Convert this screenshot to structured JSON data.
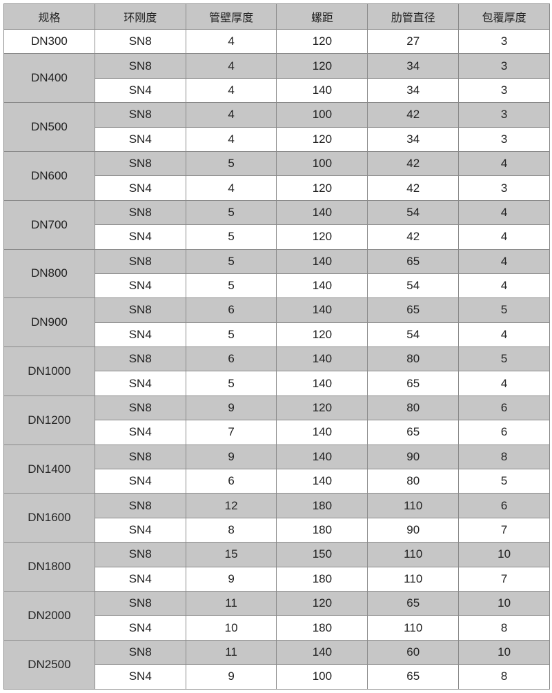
{
  "headers": [
    "规格",
    "环刚度",
    "管壁厚度",
    "螺距",
    "肋管直径",
    "包覆厚度"
  ],
  "colors": {
    "shade": "#c6c6c6",
    "border": "#8a8a8a"
  },
  "groups": [
    {
      "spec": "DN300",
      "rows": [
        [
          "SN8",
          "4",
          "120",
          "27",
          "3"
        ]
      ]
    },
    {
      "spec": "DN400",
      "rows": [
        [
          "SN8",
          "4",
          "120",
          "34",
          "3"
        ],
        [
          "SN4",
          "4",
          "140",
          "34",
          "3"
        ]
      ]
    },
    {
      "spec": "DN500",
      "rows": [
        [
          "SN8",
          "4",
          "100",
          "42",
          "3"
        ],
        [
          "SN4",
          "4",
          "120",
          "34",
          "3"
        ]
      ]
    },
    {
      "spec": "DN600",
      "rows": [
        [
          "SN8",
          "5",
          "100",
          "42",
          "4"
        ],
        [
          "SN4",
          "4",
          "120",
          "42",
          "3"
        ]
      ]
    },
    {
      "spec": "DN700",
      "rows": [
        [
          "SN8",
          "5",
          "140",
          "54",
          "4"
        ],
        [
          "SN4",
          "5",
          "120",
          "42",
          "4"
        ]
      ]
    },
    {
      "spec": "DN800",
      "rows": [
        [
          "SN8",
          "5",
          "140",
          "65",
          "4"
        ],
        [
          "SN4",
          "5",
          "140",
          "54",
          "4"
        ]
      ]
    },
    {
      "spec": "DN900",
      "rows": [
        [
          "SN8",
          "6",
          "140",
          "65",
          "5"
        ],
        [
          "SN4",
          "5",
          "120",
          "54",
          "4"
        ]
      ]
    },
    {
      "spec": "DN1000",
      "rows": [
        [
          "SN8",
          "6",
          "140",
          "80",
          "5"
        ],
        [
          "SN4",
          "5",
          "140",
          "65",
          "4"
        ]
      ]
    },
    {
      "spec": "DN1200",
      "rows": [
        [
          "SN8",
          "9",
          "120",
          "80",
          "6"
        ],
        [
          "SN4",
          "7",
          "140",
          "65",
          "6"
        ]
      ]
    },
    {
      "spec": "DN1400",
      "rows": [
        [
          "SN8",
          "9",
          "140",
          "90",
          "8"
        ],
        [
          "SN4",
          "6",
          "140",
          "80",
          "5"
        ]
      ]
    },
    {
      "spec": "DN1600",
      "rows": [
        [
          "SN8",
          "12",
          "180",
          "110",
          "6"
        ],
        [
          "SN4",
          "8",
          "180",
          "90",
          "7"
        ]
      ]
    },
    {
      "spec": "DN1800",
      "rows": [
        [
          "SN8",
          "15",
          "150",
          "110",
          "10"
        ],
        [
          "SN4",
          "9",
          "180",
          "110",
          "7"
        ]
      ]
    },
    {
      "spec": "DN2000",
      "rows": [
        [
          "SN8",
          "11",
          "120",
          "65",
          "10"
        ],
        [
          "SN4",
          "10",
          "180",
          "110",
          "8"
        ]
      ]
    },
    {
      "spec": "DN2500",
      "rows": [
        [
          "SN8",
          "11",
          "140",
          "60",
          "10"
        ],
        [
          "SN4",
          "9",
          "100",
          "65",
          "8"
        ]
      ]
    }
  ]
}
